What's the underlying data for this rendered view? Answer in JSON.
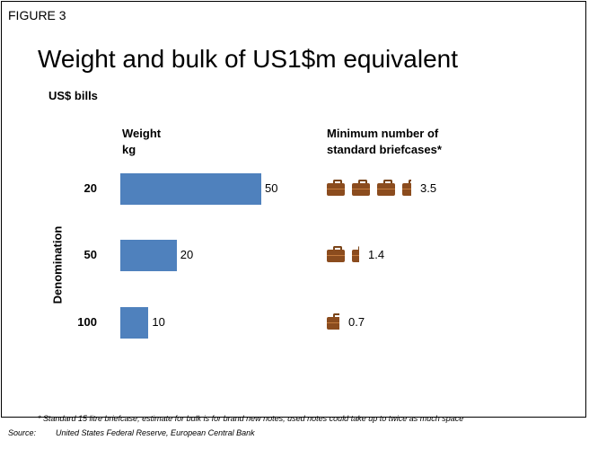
{
  "figure_label": "FIGURE 3",
  "chart_data": {
    "type": "bar",
    "title": "Weight and bulk of US1$m equivalent",
    "subtitle": "US$ bills",
    "ylabel": "Denomination",
    "categories": [
      "20",
      "50",
      "100"
    ],
    "series": [
      {
        "name": "Weight\nkg",
        "values": [
          50,
          20,
          10
        ]
      },
      {
        "name": "Minimum number of\nstandard briefcases*",
        "values": [
          3.5,
          1.4,
          0.7
        ]
      }
    ],
    "value_labels": {
      "weight": [
        "50",
        "20",
        "10"
      ],
      "briefcases": [
        "3.5",
        "1.4",
        "0.7"
      ]
    },
    "colors": {
      "bar": "#4f81bd",
      "briefcase": "#8b4c1e"
    },
    "icon": "briefcase-icon"
  },
  "footnote": "*    Standard 15 litre briefcase; estimate for bulk is for brand new notes; used notes could take up to twice as much space",
  "source_label": "Source:",
  "source_text": "United States Federal Reserve, European Central Bank"
}
